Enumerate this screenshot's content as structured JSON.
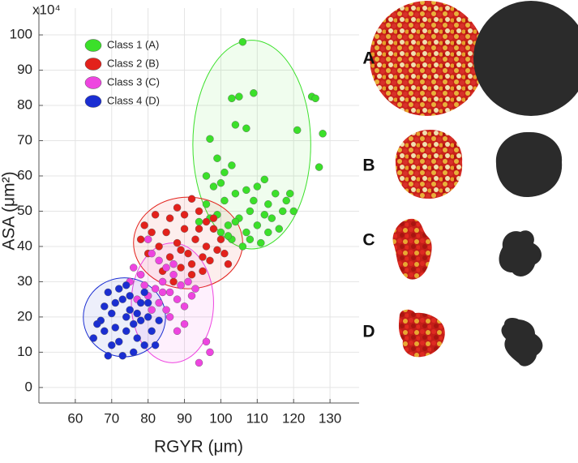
{
  "chart_data": {
    "type": "scatter",
    "xlabel": "RGYR (μm)",
    "ylabel": "ASA (μm²)",
    "y_multiplier": "x10⁴",
    "xlim": [
      50,
      138
    ],
    "ylim": [
      -4.4,
      107.6
    ],
    "xticks": [
      60,
      70,
      80,
      90,
      100,
      110,
      120,
      130
    ],
    "yticks": [
      0,
      10,
      20,
      30,
      40,
      50,
      60,
      70,
      80,
      90,
      100
    ],
    "grid": true,
    "legend": "upper left",
    "panels": [
      "A",
      "B",
      "C",
      "D"
    ],
    "series": [
      {
        "name": "Class 1 (A)",
        "color": "#3be02a",
        "region": {
          "cx": 108.5,
          "cy": 68.9,
          "rx": 16.2,
          "ry": 29.6
        },
        "x": [
          106,
          103,
          105,
          109,
          107,
          104,
          97,
          125,
          126,
          128,
          121,
          127,
          96,
          101,
          99,
          103,
          98,
          110,
          112,
          115,
          118,
          120,
          113,
          108,
          105,
          102,
          100,
          103,
          107,
          110,
          114,
          116,
          111,
          106,
          99,
          101,
          104,
          96,
          94,
          97,
          109,
          112,
          117,
          119,
          107,
          100,
          102,
          104,
          113,
          108
        ],
        "y": [
          98,
          82,
          82.5,
          83.5,
          73.5,
          74.5,
          70.5,
          82.5,
          82,
          72,
          73,
          62.5,
          60,
          61,
          65,
          63,
          57,
          57,
          59,
          55,
          53,
          50,
          52,
          50,
          48,
          46,
          44,
          42,
          44,
          46,
          48,
          45,
          41,
          40,
          49,
          53,
          55,
          52,
          47,
          48,
          53,
          49,
          50,
          55,
          56,
          58,
          43,
          47,
          44,
          42
        ]
      },
      {
        "name": "Class 2 (B)",
        "color": "#e3211b",
        "region": {
          "cx": 91,
          "cy": 41,
          "rx": 15,
          "ry": 13
        },
        "x": [
          92,
          88,
          86,
          90,
          94,
          96,
          98,
          100,
          101,
          97,
          95,
          92,
          89,
          86,
          83,
          81,
          79,
          82,
          85,
          88,
          91,
          93,
          96,
          99,
          94,
          90,
          87,
          84,
          80,
          78,
          92,
          98,
          102,
          89,
          95
        ],
        "y": [
          53.5,
          51,
          48,
          49,
          50,
          47,
          45,
          42,
          38,
          36,
          33,
          32,
          34,
          37,
          40,
          44,
          46,
          49,
          44,
          41,
          38,
          42,
          40,
          39,
          45,
          45,
          30,
          33,
          38,
          42,
          35,
          48,
          35,
          39,
          37
        ]
      },
      {
        "name": "Class 3 (C)",
        "color": "#ee45e0",
        "region": {
          "cx": 86.7,
          "cy": 24,
          "rx": 11.3,
          "ry": 17
        },
        "x": [
          80,
          81,
          83,
          85,
          87,
          89,
          91,
          84,
          82,
          80,
          78,
          76,
          86,
          88,
          90,
          85,
          83,
          79,
          77,
          92,
          96,
          97,
          94,
          90,
          88,
          86,
          93,
          81,
          84,
          87,
          75
        ],
        "y": [
          42,
          38,
          36,
          34,
          32,
          29,
          30,
          30,
          28,
          26,
          32,
          34,
          27,
          25,
          23,
          22,
          24,
          29,
          25,
          26,
          13,
          10,
          7,
          18,
          16,
          20,
          28,
          22,
          27,
          35,
          30
        ]
      },
      {
        "name": "Class 4 (D)",
        "color": "#1a2ed2",
        "region": {
          "cx": 73.5,
          "cy": 19.9,
          "rx": 11.3,
          "ry": 11.2
        },
        "x": [
          65,
          67,
          68,
          69,
          70,
          71,
          72,
          73,
          74,
          75,
          76,
          77,
          78,
          79,
          80,
          81,
          82,
          73,
          69,
          66,
          72,
          74,
          76,
          78,
          70,
          71,
          75,
          77,
          79,
          80,
          83,
          68,
          74
        ],
        "y": [
          14,
          19,
          23,
          27,
          21,
          17,
          13,
          25,
          29,
          22,
          18,
          14,
          24,
          27,
          20,
          16,
          12,
          9,
          9,
          18,
          28,
          16,
          10,
          19,
          12,
          24,
          26,
          21,
          12,
          24,
          19,
          16,
          20
        ]
      }
    ]
  }
}
